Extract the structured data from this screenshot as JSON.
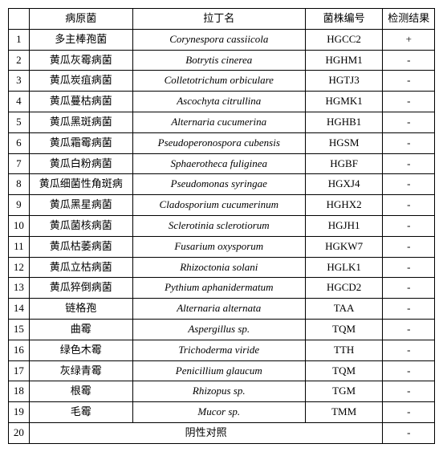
{
  "header": {
    "index": "",
    "pathogen": "病原菌",
    "latin": "拉丁名",
    "code": "菌株编号",
    "result": "检测结果"
  },
  "rows": [
    {
      "idx": "1",
      "pathogen": "多主棒孢菌",
      "latin": "Corynespora cassiicola",
      "code": "HGCC2",
      "result": "+"
    },
    {
      "idx": "2",
      "pathogen": "黄瓜灰霉病菌",
      "latin": "Botrytis cinerea",
      "code": "HGHM1",
      "result": "-"
    },
    {
      "idx": "3",
      "pathogen": "黄瓜炭疽病菌",
      "latin": "Colletotrichum orbiculare",
      "code": "HGTJ3",
      "result": "-"
    },
    {
      "idx": "4",
      "pathogen": "黄瓜蔓枯病菌",
      "latin": "Ascochyta citrullina",
      "code": "HGMK1",
      "result": "-"
    },
    {
      "idx": "5",
      "pathogen": "黄瓜黑斑病菌",
      "latin": "Alternaria cucumerina",
      "code": "HGHB1",
      "result": "-"
    },
    {
      "idx": "6",
      "pathogen": "黄瓜霜霉病菌",
      "latin": "Pseudoperonospora cubensis",
      "code": "HGSM",
      "result": "-"
    },
    {
      "idx": "7",
      "pathogen": "黄瓜白粉病菌",
      "latin": "Sphaerotheca fuliginea",
      "code": "HGBF",
      "result": "-"
    },
    {
      "idx": "8",
      "pathogen": "黄瓜细菌性角斑病",
      "latin": "Pseudomonas syringae",
      "code": "HGXJ4",
      "result": "-"
    },
    {
      "idx": "9",
      "pathogen": "黄瓜黑星病菌",
      "latin": "Cladosporium cucumerinum",
      "code": "HGHX2",
      "result": "-"
    },
    {
      "idx": "10",
      "pathogen": "黄瓜菌核病菌",
      "latin": "Sclerotinia sclerotiorum",
      "code": "HGJH1",
      "result": "-"
    },
    {
      "idx": "11",
      "pathogen": "黄瓜枯萎病菌",
      "latin": "Fusarium oxysporum",
      "code": "HGKW7",
      "result": "-"
    },
    {
      "idx": "12",
      "pathogen": "黄瓜立枯病菌",
      "latin": "Rhizoctonia solani",
      "code": "HGLK1",
      "result": "-"
    },
    {
      "idx": "13",
      "pathogen": "黄瓜猝倒病菌",
      "latin": "Pythium aphanidermatum",
      "code": "HGCD2",
      "result": "-"
    },
    {
      "idx": "14",
      "pathogen": "链格孢",
      "latin": "Alternaria alternata",
      "code": "TAA",
      "result": "-"
    },
    {
      "idx": "15",
      "pathogen": "曲霉",
      "latin": "Aspergillus sp.",
      "code": "TQM",
      "result": "-"
    },
    {
      "idx": "16",
      "pathogen": "绿色木霉",
      "latin": "Trichoderma viride",
      "code": "TTH",
      "result": "-"
    },
    {
      "idx": "17",
      "pathogen": "灰绿青霉",
      "latin": "Penicillium glaucum",
      "code": "TQM",
      "result": "-"
    },
    {
      "idx": "18",
      "pathogen": "根霉",
      "latin": "Rhizopus sp.",
      "code": "TGM",
      "result": "-"
    },
    {
      "idx": "19",
      "pathogen": "毛霉",
      "latin": "Mucor sp.",
      "code": "TMM",
      "result": "-"
    }
  ],
  "footer": {
    "idx": "20",
    "label": "阴性对照",
    "result": "-"
  }
}
